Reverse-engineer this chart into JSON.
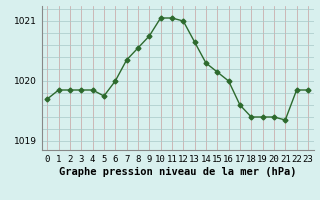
{
  "hours": [
    0,
    1,
    2,
    3,
    4,
    5,
    6,
    7,
    8,
    9,
    10,
    11,
    12,
    13,
    14,
    15,
    16,
    17,
    18,
    19,
    20,
    21,
    22,
    23
  ],
  "pressure": [
    1019.7,
    1019.85,
    1019.85,
    1019.85,
    1019.85,
    1019.75,
    1020.0,
    1020.35,
    1020.55,
    1020.75,
    1021.05,
    1021.05,
    1021.0,
    1020.65,
    1020.3,
    1020.15,
    1020.0,
    1019.6,
    1019.4,
    1019.4,
    1019.4,
    1019.35,
    1019.85,
    1019.85
  ],
  "line_color": "#2d6a2d",
  "marker": "D",
  "marker_size": 2.5,
  "bg_color": "#d8f0ee",
  "grid_color_v": "#c8a0a0",
  "grid_color_h": "#a8c8c8",
  "title": "Graphe pression niveau de la mer (hPa)",
  "ylabel_ticks": [
    1019,
    1020,
    1021
  ],
  "ylim": [
    1018.85,
    1021.25
  ],
  "xlim": [
    -0.5,
    23.5
  ],
  "xtick_labels": [
    "0",
    "1",
    "2",
    "3",
    "4",
    "5",
    "6",
    "7",
    "8",
    "9",
    "10",
    "11",
    "12",
    "13",
    "14",
    "15",
    "16",
    "17",
    "18",
    "19",
    "20",
    "21",
    "22",
    "23"
  ],
  "title_fontsize": 7.5,
  "tick_fontsize": 6.5
}
